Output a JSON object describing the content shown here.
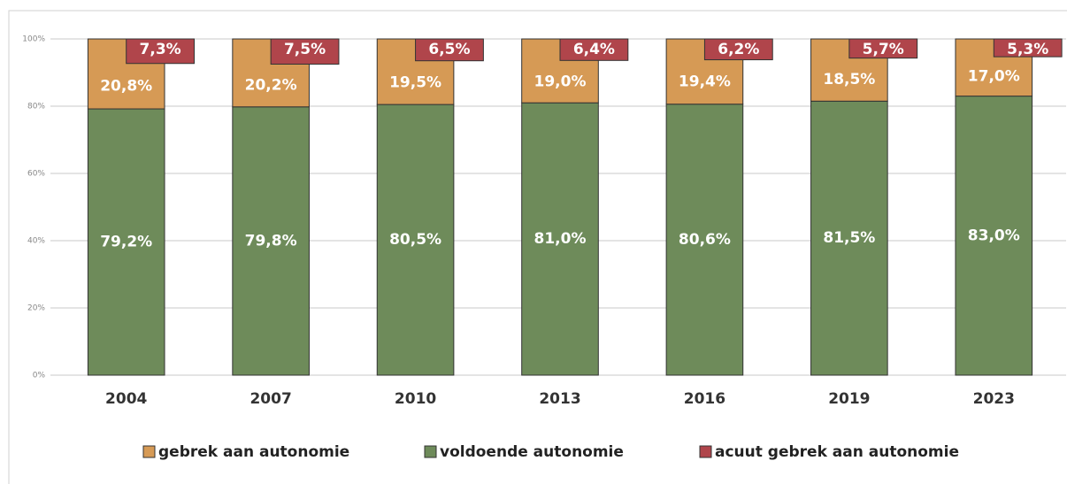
{
  "chart_data": {
    "type": "bar",
    "categories": [
      "2004",
      "2007",
      "2010",
      "2013",
      "2016",
      "2019",
      "2023"
    ],
    "series": [
      {
        "name": "gebrek aan autonomie",
        "color": "#d69a55",
        "values": [
          20.8,
          20.2,
          19.5,
          19.0,
          19.4,
          18.5,
          17.0
        ],
        "value_labels": [
          "20,8%",
          "20,2%",
          "19,5%",
          "19,0%",
          "19,4%",
          "18,5%",
          "17,0%"
        ]
      },
      {
        "name": "voldoende autonomie",
        "color": "#6e8b5a",
        "values": [
          79.2,
          79.8,
          80.5,
          81.0,
          80.6,
          81.5,
          83.0
        ],
        "value_labels": [
          "79,2%",
          "79,8%",
          "80,5%",
          "81,0%",
          "80,6%",
          "81,5%",
          "83,0%"
        ]
      },
      {
        "name": "acuut gebrek aan autonomie",
        "color": "#b0454b",
        "values": [
          7.3,
          7.5,
          6.5,
          6.4,
          6.2,
          5.7,
          5.3
        ],
        "value_labels": [
          "7,3%",
          "7,5%",
          "6,5%",
          "6,4%",
          "6,2%",
          "5,7%",
          "5,3%"
        ]
      }
    ],
    "ylim": [
      0,
      100
    ],
    "yticks": [
      {
        "value": 0,
        "label": "0%"
      },
      {
        "value": 20,
        "label": "20%"
      },
      {
        "value": 40,
        "label": "40%"
      },
      {
        "value": 60,
        "label": "60%"
      },
      {
        "value": 80,
        "label": "80%"
      },
      {
        "value": 100,
        "label": "100%"
      }
    ],
    "grid": true
  }
}
